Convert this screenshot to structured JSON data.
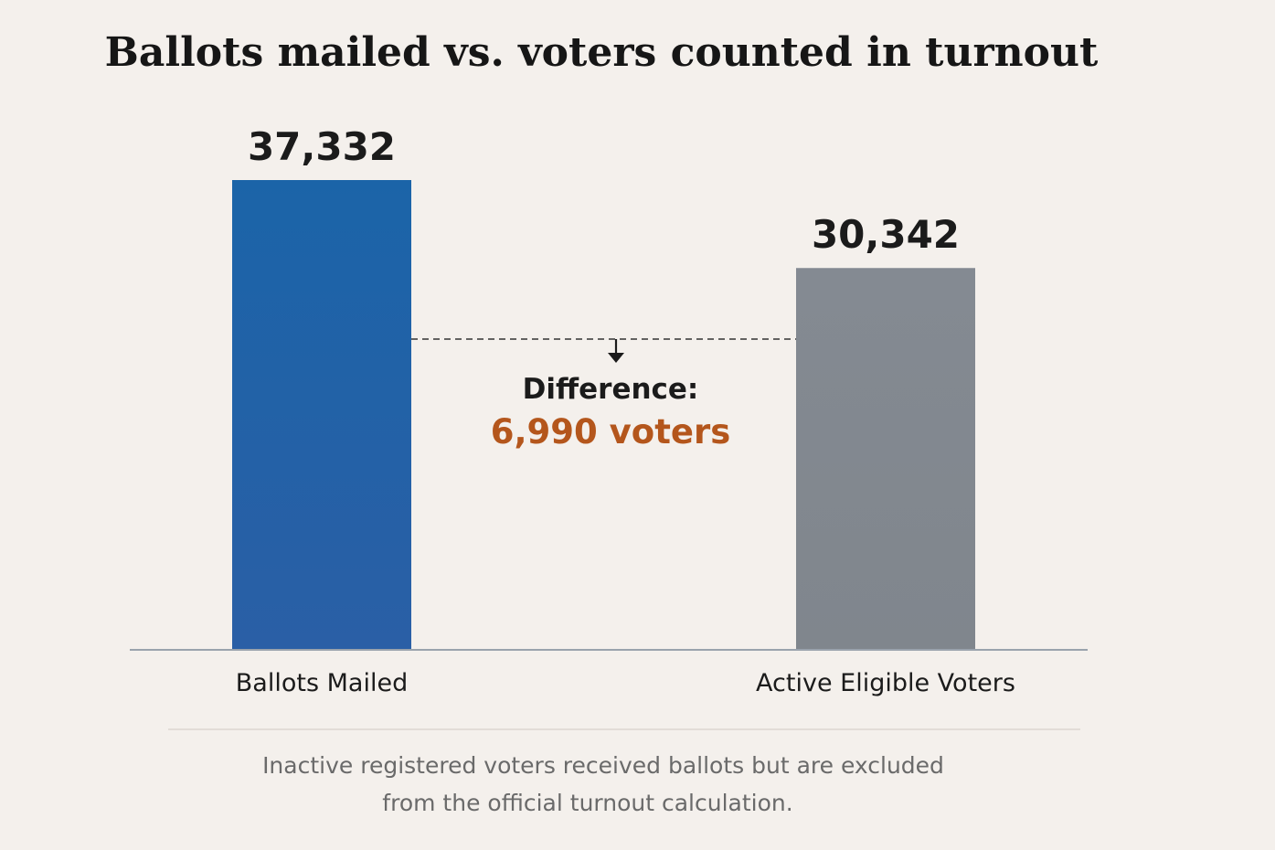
{
  "chart_data": {
    "type": "bar",
    "title": "Ballots mailed vs. voters counted in turnout",
    "categories": [
      "Ballots Mailed",
      "Active Eligible Voters"
    ],
    "values": [
      37332,
      30342
    ],
    "value_labels": [
      "37,332",
      "30,342"
    ],
    "colors": [
      "#1f63a8",
      "#82878e"
    ],
    "ylim": [
      0,
      37332
    ],
    "grid": false,
    "annotation": {
      "label": "Difference:",
      "value": "6,990 voters",
      "color": "#b4561c"
    }
  },
  "footnote": {
    "line1": "Inactive registered voters received ballots but are excluded",
    "line2": "from the official turnout calculation."
  }
}
